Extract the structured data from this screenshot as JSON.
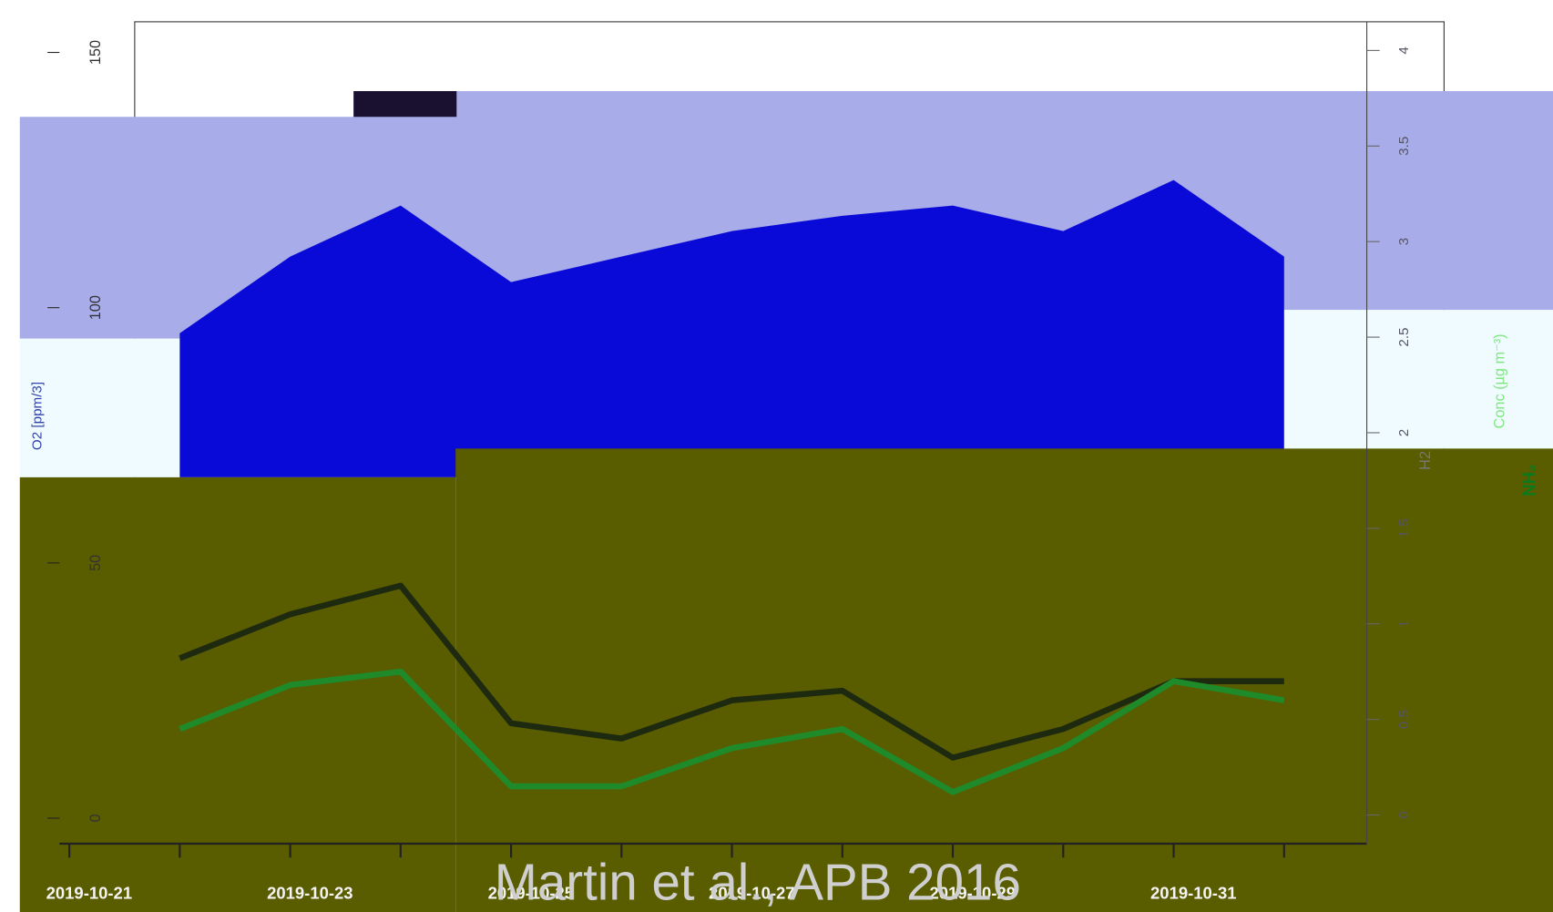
{
  "chart_data": {
    "type": "line",
    "x": [
      "2019-10-21",
      null,
      "2019-10-23",
      null,
      "2019-10-25",
      null,
      "2019-10-27",
      null,
      "2019-10-29",
      null,
      "2019-10-31",
      null
    ],
    "ylim": [
      -5,
      156
    ],
    "yticks": [
      0,
      50,
      100,
      150
    ],
    "y2lim": [
      -0.15,
      4.15
    ],
    "y2ticks": [
      0,
      0.5,
      1,
      1.5,
      2,
      2.5,
      3,
      3.5,
      4
    ],
    "y_label": "O2 [ppm/3]",
    "y2_label": "Conc (µg m⁻³)",
    "y2_label_species": "NH₃",
    "y2_label_left": "H2",
    "series": [
      {
        "type": "area",
        "color": "#0a0ad8",
        "values": [
          null,
          95,
          110,
          120,
          105,
          110,
          115,
          118,
          120,
          115,
          125,
          110
        ]
      },
      {
        "axis": "y2",
        "color": "#1d2a10",
        "values": [
          null,
          0.82,
          1.05,
          1.2,
          0.48,
          0.4,
          0.6,
          0.65,
          0.3,
          0.45,
          0.7,
          0.7
        ]
      },
      {
        "axis": "y2",
        "color": "#1f8a2a",
        "values": [
          null,
          0.45,
          0.68,
          0.75,
          0.15,
          0.15,
          0.35,
          0.45,
          0.12,
          0.35,
          0.7,
          0.6
        ]
      }
    ],
    "annotation": "Martin et al., APB 2016"
  }
}
